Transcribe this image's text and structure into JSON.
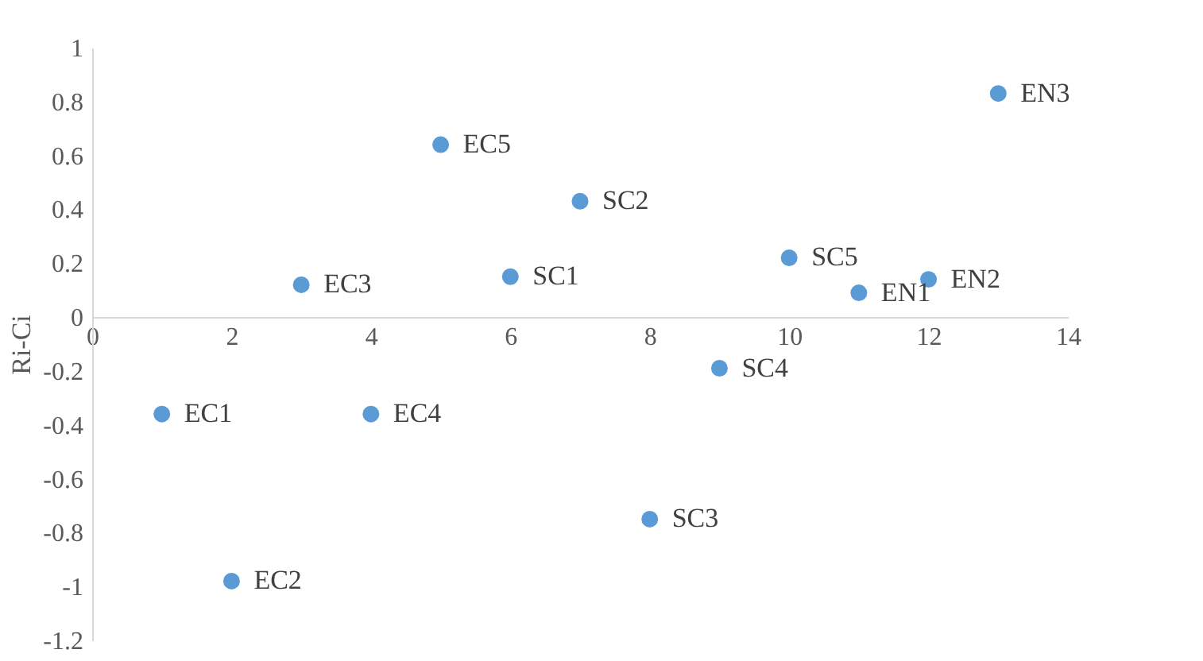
{
  "chart_data": {
    "type": "scatter",
    "ylabel": "Ri-Ci",
    "x": [
      1,
      2,
      3,
      4,
      5,
      6,
      7,
      8,
      9,
      10,
      11,
      12,
      13
    ],
    "series": [
      {
        "color": "#5b9bd5",
        "values": [
          -0.36,
          -0.98,
          0.12,
          -0.36,
          0.64,
          0.15,
          0.43,
          -0.75,
          -0.19,
          0.22,
          0.09,
          0.14,
          0.83
        ]
      }
    ],
    "annotations": [
      {
        "text": "EC1",
        "x": 1,
        "y": -0.36
      },
      {
        "text": "EC2",
        "x": 2,
        "y": -0.98
      },
      {
        "text": "EC3",
        "x": 3,
        "y": 0.12
      },
      {
        "text": "EC4",
        "x": 4,
        "y": -0.36
      },
      {
        "text": "EC5",
        "x": 5,
        "y": 0.64
      },
      {
        "text": "SC1",
        "x": 6,
        "y": 0.15
      },
      {
        "text": "SC2",
        "x": 7,
        "y": 0.43
      },
      {
        "text": "SC3",
        "x": 8,
        "y": -0.75
      },
      {
        "text": "SC4",
        "x": 9,
        "y": -0.19
      },
      {
        "text": "SC5",
        "x": 10,
        "y": 0.22
      },
      {
        "text": "EN1",
        "x": 11,
        "y": 0.09
      },
      {
        "text": "EN2",
        "x": 12,
        "y": 0.14
      },
      {
        "text": "EN3",
        "x": 13,
        "y": 0.83
      }
    ],
    "xlim": [
      0,
      14
    ],
    "xticks": [
      0,
      2,
      4,
      6,
      8,
      10,
      12,
      14
    ],
    "ylim": [
      -1.2,
      1
    ],
    "yticks": [
      -1.2,
      -1,
      -0.8,
      -0.6,
      -0.4,
      -0.2,
      0,
      0.2,
      0.4,
      0.6,
      0.8,
      1
    ],
    "grid": false,
    "marker": "circle"
  }
}
